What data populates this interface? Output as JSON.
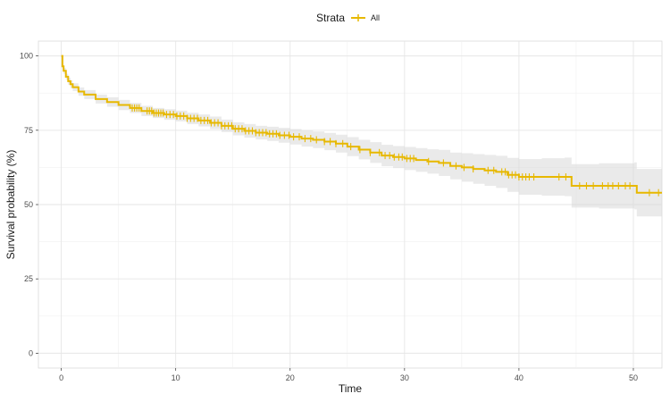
{
  "chart_data": {
    "type": "line",
    "xlabel": "Time",
    "ylabel": "Survival probability (%)",
    "xlim": [
      -2,
      52.5
    ],
    "ylim": [
      -5,
      105
    ],
    "x_ticks": [
      0,
      10,
      20,
      30,
      40,
      50
    ],
    "y_ticks": [
      0,
      25,
      50,
      75,
      100
    ],
    "grid": true,
    "legend": {
      "position": "top",
      "title": "Strata",
      "entries": [
        "All"
      ]
    },
    "series": [
      {
        "name": "All",
        "color": "#E7B800",
        "step": true,
        "points": [
          [
            0,
            100
          ],
          [
            0.1,
            96.5
          ],
          [
            0.2,
            95
          ],
          [
            0.4,
            93
          ],
          [
            0.6,
            91.5
          ],
          [
            0.8,
            90.5
          ],
          [
            1,
            89.5
          ],
          [
            1.5,
            88
          ],
          [
            2,
            87
          ],
          [
            3,
            85.5
          ],
          [
            4,
            84.5
          ],
          [
            5,
            83.5
          ],
          [
            6,
            82.5
          ],
          [
            7,
            81.5
          ],
          [
            8,
            80.8
          ],
          [
            9,
            80.3
          ],
          [
            10,
            79.8
          ],
          [
            11,
            79
          ],
          [
            12,
            78.3
          ],
          [
            13,
            77.5
          ],
          [
            14,
            76.5
          ],
          [
            15,
            75.5
          ],
          [
            16,
            74.8
          ],
          [
            17,
            74.2
          ],
          [
            18,
            73.8
          ],
          [
            19,
            73.3
          ],
          [
            20,
            72.8
          ],
          [
            21,
            72.2
          ],
          [
            22,
            71.8
          ],
          [
            23,
            71.2
          ],
          [
            24,
            70.5
          ],
          [
            25,
            69.5
          ],
          [
            26,
            68.5
          ],
          [
            27,
            67.5
          ],
          [
            28,
            66.5
          ],
          [
            29,
            66
          ],
          [
            30,
            65.5
          ],
          [
            31,
            65
          ],
          [
            32,
            64.5
          ],
          [
            33,
            64
          ],
          [
            34,
            63
          ],
          [
            35,
            62.5
          ],
          [
            36,
            62
          ],
          [
            37,
            61.5
          ],
          [
            38,
            61
          ],
          [
            39,
            60
          ],
          [
            40,
            59.3
          ],
          [
            42,
            59.3
          ],
          [
            44,
            59.3
          ],
          [
            44.6,
            56.3
          ],
          [
            47,
            56.3
          ],
          [
            50.1,
            56.3
          ],
          [
            50.3,
            54
          ],
          [
            52.5,
            54
          ]
        ],
        "ci_lower": [
          [
            0,
            100
          ],
          [
            0.1,
            95.5
          ],
          [
            0.2,
            94
          ],
          [
            0.4,
            92
          ],
          [
            0.6,
            90.3
          ],
          [
            0.8,
            89.2
          ],
          [
            1,
            88.2
          ],
          [
            1.5,
            86.6
          ],
          [
            2,
            85.5
          ],
          [
            3,
            84
          ],
          [
            4,
            82.9
          ],
          [
            5,
            81.8
          ],
          [
            6,
            80.8
          ],
          [
            7,
            79.8
          ],
          [
            8,
            79.1
          ],
          [
            9,
            78.5
          ],
          [
            10,
            78
          ],
          [
            11,
            77.1
          ],
          [
            12,
            76.3
          ],
          [
            13,
            75.4
          ],
          [
            14,
            74.4
          ],
          [
            15,
            73.3
          ],
          [
            16,
            72.5
          ],
          [
            17,
            71.9
          ],
          [
            18,
            71.4
          ],
          [
            19,
            70.8
          ],
          [
            20,
            70.2
          ],
          [
            21,
            69.5
          ],
          [
            22,
            69
          ],
          [
            23,
            68.3
          ],
          [
            24,
            67.5
          ],
          [
            25,
            66.3
          ],
          [
            26,
            65.2
          ],
          [
            27,
            64
          ],
          [
            28,
            62.9
          ],
          [
            29,
            62.3
          ],
          [
            30,
            61.6
          ],
          [
            31,
            61
          ],
          [
            32,
            60.4
          ],
          [
            33,
            59.6
          ],
          [
            34,
            58.5
          ],
          [
            35,
            57.7
          ],
          [
            36,
            57
          ],
          [
            37,
            56.3
          ],
          [
            38,
            55.6
          ],
          [
            39,
            54.3
          ],
          [
            40,
            53.3
          ],
          [
            42,
            53
          ],
          [
            44,
            52.8
          ],
          [
            44.6,
            49
          ],
          [
            47,
            48.7
          ],
          [
            50.1,
            48.4
          ],
          [
            50.3,
            46
          ],
          [
            52.5,
            46
          ]
        ],
        "ci_upper": [
          [
            0,
            100
          ],
          [
            0.1,
            97.5
          ],
          [
            0.2,
            96
          ],
          [
            0.4,
            94
          ],
          [
            0.6,
            92.7
          ],
          [
            0.8,
            91.8
          ],
          [
            1,
            90.8
          ],
          [
            1.5,
            89.4
          ],
          [
            2,
            88.5
          ],
          [
            3,
            87
          ],
          [
            4,
            86.1
          ],
          [
            5,
            85.2
          ],
          [
            6,
            84.2
          ],
          [
            7,
            83.2
          ],
          [
            8,
            82.5
          ],
          [
            9,
            82.1
          ],
          [
            10,
            81.6
          ],
          [
            11,
            80.9
          ],
          [
            12,
            80.3
          ],
          [
            13,
            79.6
          ],
          [
            14,
            78.6
          ],
          [
            15,
            77.7
          ],
          [
            16,
            77.1
          ],
          [
            17,
            76.5
          ],
          [
            18,
            76.2
          ],
          [
            19,
            75.8
          ],
          [
            20,
            75.4
          ],
          [
            21,
            74.9
          ],
          [
            22,
            74.6
          ],
          [
            23,
            74.1
          ],
          [
            24,
            73.5
          ],
          [
            25,
            72.7
          ],
          [
            26,
            71.8
          ],
          [
            27,
            71
          ],
          [
            28,
            70.1
          ],
          [
            29,
            69.7
          ],
          [
            30,
            69.4
          ],
          [
            31,
            69
          ],
          [
            32,
            68.6
          ],
          [
            33,
            68.4
          ],
          [
            34,
            67.5
          ],
          [
            35,
            67.3
          ],
          [
            36,
            67
          ],
          [
            37,
            66.7
          ],
          [
            38,
            66.4
          ],
          [
            39,
            65.7
          ],
          [
            40,
            65.3
          ],
          [
            42,
            65.6
          ],
          [
            44,
            65.8
          ],
          [
            44.6,
            63.6
          ],
          [
            47,
            63.9
          ],
          [
            50.1,
            64.2
          ],
          [
            50.3,
            62
          ],
          [
            52.5,
            62
          ]
        ],
        "censor_times": [
          6.2,
          6.4,
          6.6,
          6.8,
          7.5,
          7.7,
          7.9,
          8.1,
          8.3,
          8.5,
          8.7,
          8.9,
          9.2,
          9.5,
          9.8,
          10.1,
          10.4,
          10.7,
          11,
          11.3,
          11.6,
          11.9,
          12.2,
          12.5,
          12.8,
          13.1,
          13.4,
          13.7,
          14,
          14.3,
          14.6,
          14.9,
          15.2,
          15.5,
          15.8,
          16.1,
          16.4,
          16.7,
          17,
          17.3,
          17.6,
          17.9,
          18.2,
          18.5,
          18.8,
          19.1,
          19.5,
          19.9,
          20.3,
          20.8,
          21.3,
          21.8,
          22.3,
          23,
          23.5,
          24,
          24.6,
          25.3,
          26.1,
          27,
          27.8,
          28.3,
          28.7,
          29.1,
          29.5,
          29.8,
          30.2,
          30.5,
          30.8,
          32.1,
          33.4,
          34.5,
          35.2,
          36,
          37.3,
          37.8,
          38.5,
          38.8,
          39.1,
          39.4,
          39.7,
          40,
          40.3,
          40.6,
          40.9,
          41.3,
          43.5,
          44.1,
          45.3,
          45.9,
          46.5,
          47.3,
          47.8,
          48.2,
          48.7,
          49.3,
          49.7,
          51.4,
          52.2
        ]
      }
    ]
  }
}
